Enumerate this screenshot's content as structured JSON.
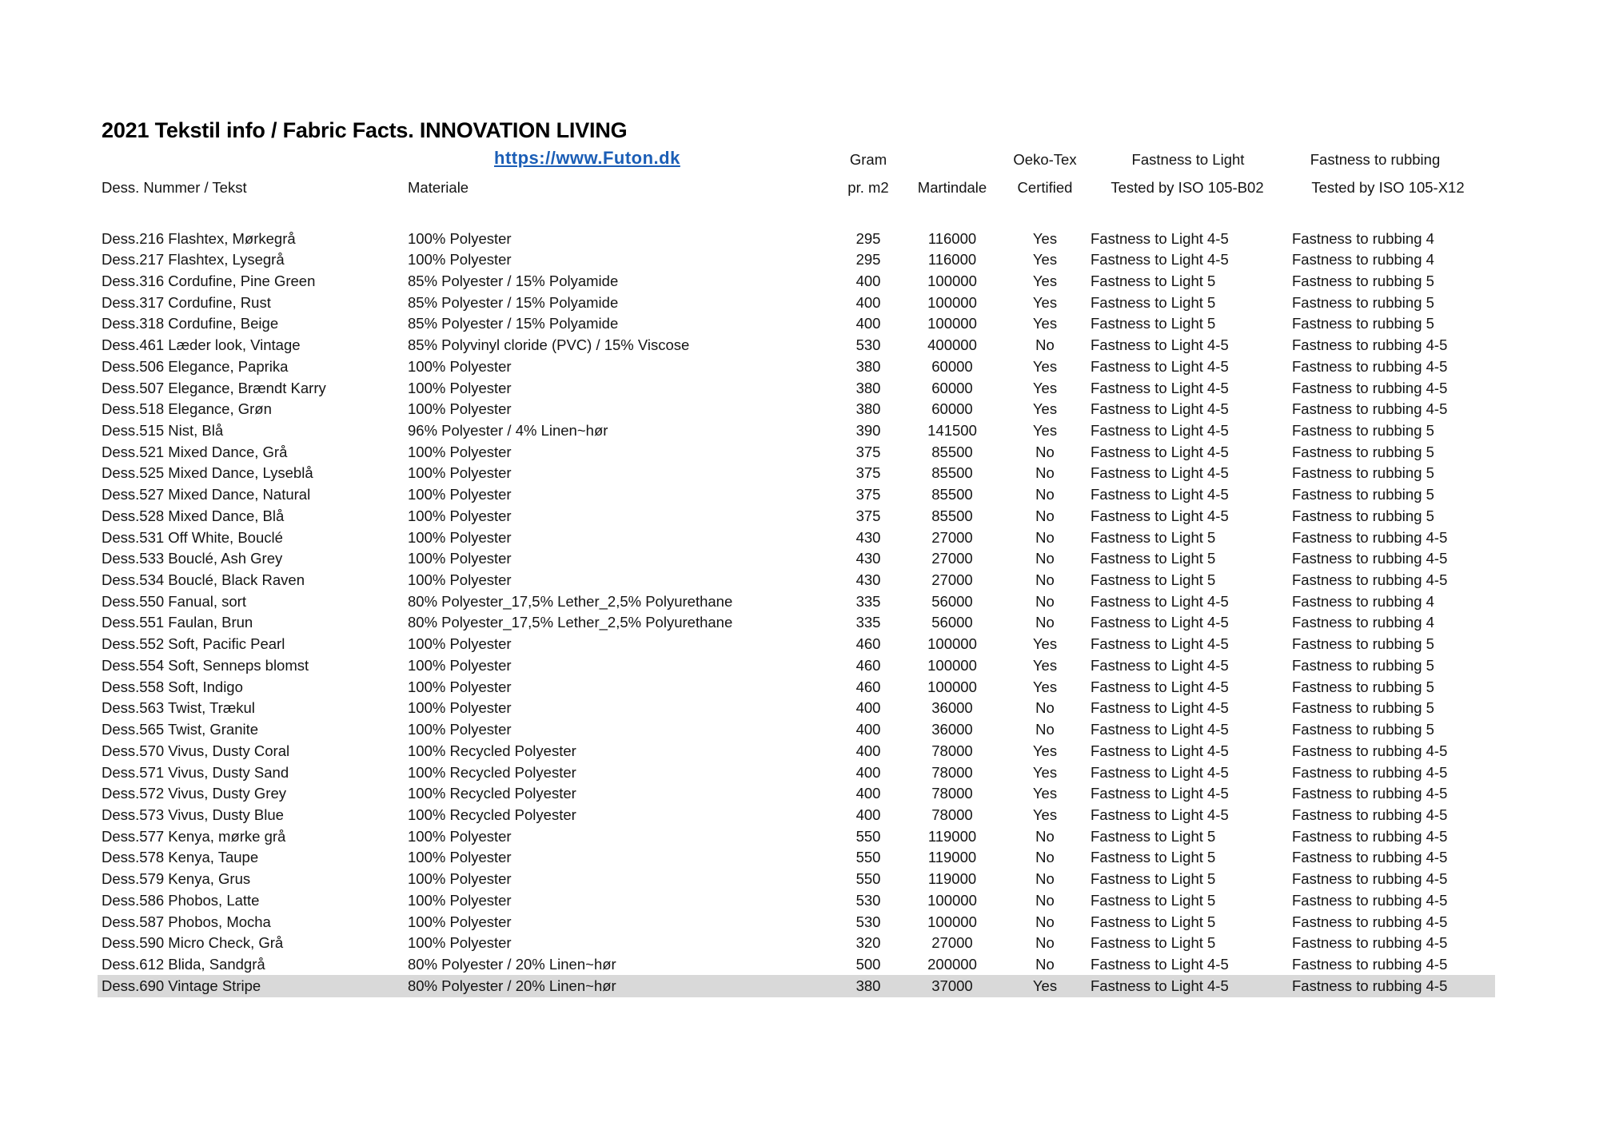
{
  "page": {
    "title": "2021 Tekstil info / Fabric Facts. INNOVATION LIVING",
    "link": "https://www.Futon.dk",
    "link_color": "#1b5eb6",
    "highlight_color": "#d9d9d9",
    "text_color": "#141414"
  },
  "table": {
    "header_row1": {
      "gram": "Gram",
      "oeko": "Oeko-Tex",
      "light": "Fastness to Light",
      "rubbing": "Fastness to rubbing"
    },
    "header_row2": {
      "dess": "Dess. Nummer / Tekst",
      "materiale": "Materiale",
      "prm2": "pr. m2",
      "martindale": "Martindale",
      "certified": "Certified",
      "tested_light": "Tested by ISO 105-B02",
      "tested_rubbing": "Tested by ISO 105-X12"
    },
    "highlighted_row_index": 35,
    "rows": [
      [
        "Dess.216 Flashtex, Mørkegrå",
        "100% Polyester",
        "295",
        "116000",
        "Yes",
        "Fastness to Light 4-5",
        "Fastness to rubbing 4"
      ],
      [
        "Dess.217 Flashtex, Lysegrå",
        "100% Polyester",
        "295",
        "116000",
        "Yes",
        "Fastness to Light 4-5",
        "Fastness to rubbing 4"
      ],
      [
        "Dess.316 Cordufine, Pine Green",
        "85% Polyester / 15% Polyamide",
        "400",
        "100000",
        "Yes",
        "Fastness to Light 5",
        "Fastness to rubbing 5"
      ],
      [
        "Dess.317 Cordufine, Rust",
        "85% Polyester / 15% Polyamide",
        "400",
        "100000",
        "Yes",
        "Fastness to Light 5",
        "Fastness to rubbing 5"
      ],
      [
        "Dess.318 Cordufine, Beige",
        "85% Polyester / 15% Polyamide",
        "400",
        "100000",
        "Yes",
        "Fastness to Light 5",
        "Fastness to rubbing 5"
      ],
      [
        "Dess.461 Læder look, Vintage",
        "85% Polyvinyl cloride (PVC) / 15% Viscose",
        "530",
        "400000",
        "No",
        "Fastness to Light 4-5",
        "Fastness to rubbing 4-5"
      ],
      [
        "Dess.506 Elegance, Paprika",
        "100% Polyester",
        "380",
        "60000",
        "Yes",
        "Fastness to Light 4-5",
        "Fastness to rubbing 4-5"
      ],
      [
        "Dess.507 Elegance, Brændt Karry",
        "100% Polyester",
        "380",
        "60000",
        "Yes",
        "Fastness to Light 4-5",
        "Fastness to rubbing 4-5"
      ],
      [
        "Dess.518 Elegance, Grøn",
        "100% Polyester",
        "380",
        "60000",
        "Yes",
        "Fastness to Light 4-5",
        "Fastness to rubbing 4-5"
      ],
      [
        "Dess.515 Nist, Blå",
        "96% Polyester / 4% Linen~hør",
        "390",
        "141500",
        "Yes",
        "Fastness to Light 4-5",
        "Fastness to rubbing 5"
      ],
      [
        "Dess.521 Mixed Dance, Grå",
        "100% Polyester",
        "375",
        "85500",
        "No",
        "Fastness to Light 4-5",
        "Fastness to rubbing 5"
      ],
      [
        "Dess.525 Mixed Dance, Lyseblå",
        "100% Polyester",
        "375",
        "85500",
        "No",
        "Fastness to Light 4-5",
        "Fastness to rubbing 5"
      ],
      [
        "Dess.527 Mixed Dance, Natural",
        "100% Polyester",
        "375",
        "85500",
        "No",
        "Fastness to Light 4-5",
        "Fastness to rubbing 5"
      ],
      [
        "Dess.528 Mixed Dance, Blå",
        "100% Polyester",
        "375",
        "85500",
        "No",
        "Fastness to Light 4-5",
        "Fastness to rubbing 5"
      ],
      [
        "Dess.531 Off White, Bouclé",
        "100% Polyester",
        "430",
        "27000",
        "No",
        "Fastness to Light 5",
        "Fastness to rubbing 4-5"
      ],
      [
        "Dess.533 Bouclé, Ash Grey",
        "100% Polyester",
        "430",
        "27000",
        "No",
        "Fastness to Light 5",
        "Fastness to rubbing 4-5"
      ],
      [
        "Dess.534 Bouclé, Black Raven",
        "100% Polyester",
        "430",
        "27000",
        "No",
        "Fastness to Light 5",
        "Fastness to rubbing 4-5"
      ],
      [
        "Dess.550 Fanual, sort",
        "80% Polyester_17,5% Lether_2,5% Polyurethane",
        "335",
        "56000",
        "No",
        "Fastness to Light 4-5",
        "Fastness to rubbing 4"
      ],
      [
        "Dess.551 Faulan, Brun",
        "80% Polyester_17,5% Lether_2,5% Polyurethane",
        "335",
        "56000",
        "No",
        "Fastness to Light 4-5",
        "Fastness to rubbing 4"
      ],
      [
        "Dess.552 Soft, Pacific Pearl",
        "100% Polyester",
        "460",
        "100000",
        "Yes",
        "Fastness to Light 4-5",
        "Fastness to rubbing 5"
      ],
      [
        "Dess.554 Soft, Senneps blomst",
        "100% Polyester",
        "460",
        "100000",
        "Yes",
        "Fastness to Light 4-5",
        "Fastness to rubbing 5"
      ],
      [
        "Dess.558 Soft, Indigo",
        "100% Polyester",
        "460",
        "100000",
        "Yes",
        "Fastness to Light 4-5",
        "Fastness to rubbing 5"
      ],
      [
        "Dess.563 Twist, Trækul",
        "100% Polyester",
        "400",
        "36000",
        "No",
        "Fastness to Light 4-5",
        "Fastness to rubbing 5"
      ],
      [
        "Dess.565 Twist, Granite",
        "100% Polyester",
        "400",
        "36000",
        "No",
        "Fastness to Light 4-5",
        "Fastness to rubbing 5"
      ],
      [
        "Dess.570 Vivus, Dusty Coral",
        "100% Recycled Polyester",
        "400",
        "78000",
        "Yes",
        "Fastness to Light 4-5",
        "Fastness to rubbing 4-5"
      ],
      [
        "Dess.571 Vivus, Dusty Sand",
        "100% Recycled Polyester",
        "400",
        "78000",
        "Yes",
        "Fastness to Light 4-5",
        "Fastness to rubbing 4-5"
      ],
      [
        "Dess.572 Vivus, Dusty Grey",
        "100% Recycled Polyester",
        "400",
        "78000",
        "Yes",
        "Fastness to Light 4-5",
        "Fastness to rubbing 4-5"
      ],
      [
        "Dess.573 Vivus, Dusty Blue",
        "100% Recycled Polyester",
        "400",
        "78000",
        "Yes",
        "Fastness to Light 4-5",
        "Fastness to rubbing 4-5"
      ],
      [
        "Dess.577 Kenya, mørke grå",
        "100% Polyester",
        "550",
        "119000",
        "No",
        "Fastness to Light 5",
        "Fastness to rubbing 4-5"
      ],
      [
        "Dess.578 Kenya, Taupe",
        "100% Polyester",
        "550",
        "119000",
        "No",
        "Fastness to Light 5",
        "Fastness to rubbing 4-5"
      ],
      [
        "Dess.579 Kenya, Grus",
        "100% Polyester",
        "550",
        "119000",
        "No",
        "Fastness to Light 5",
        "Fastness to rubbing 4-5"
      ],
      [
        "Dess.586 Phobos, Latte",
        "100% Polyester",
        "530",
        "100000",
        "No",
        "Fastness to Light 5",
        "Fastness to rubbing 4-5"
      ],
      [
        "Dess.587 Phobos, Mocha",
        "100% Polyester",
        "530",
        "100000",
        "No",
        "Fastness to Light 5",
        "Fastness to rubbing 4-5"
      ],
      [
        "Dess.590 Micro Check, Grå",
        "100% Polyester",
        "320",
        "27000",
        "No",
        "Fastness to Light 5",
        "Fastness to rubbing 4-5"
      ],
      [
        "Dess.612 Blida, Sandgrå",
        "80% Polyester / 20% Linen~hør",
        "500",
        "200000",
        "No",
        "Fastness to Light 4-5",
        "Fastness to rubbing 4-5"
      ],
      [
        "Dess.690 Vintage Stripe",
        "80% Polyester / 20% Linen~hør",
        "380",
        "37000",
        "Yes",
        "Fastness to Light 4-5",
        "Fastness to rubbing 4-5"
      ]
    ]
  }
}
